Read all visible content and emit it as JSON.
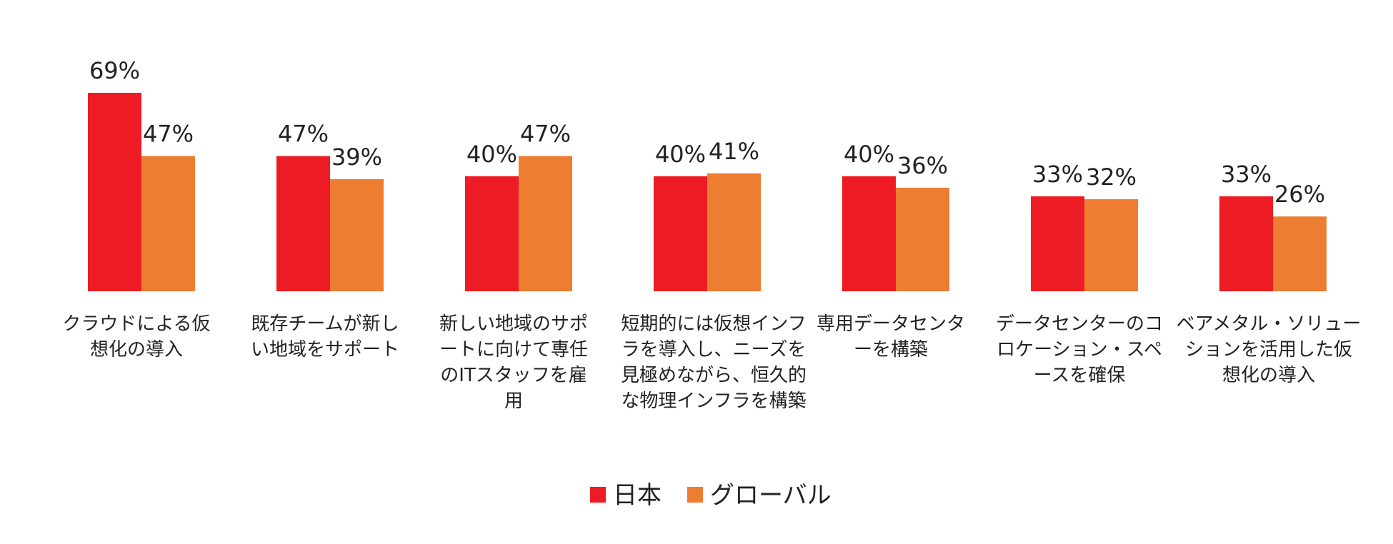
{
  "chart_data": {
    "type": "bar",
    "categories": [
      [
        "クラウドによる仮",
        "想化の導入"
      ],
      [
        "既存チームが新し",
        "い地域をサポート"
      ],
      [
        "新しい地域のサポ",
        "ートに向けて専任",
        "のITスタッフを雇",
        "用"
      ],
      [
        "短期的には仮想インフ",
        "ラを導入し、ニーズを",
        "見極めながら、恒久的",
        "な物理インフラを構築"
      ],
      [
        "専用データセンタ",
        "ーを構築"
      ],
      [
        "データセンターのコ",
        "ロケーション・スペ",
        "ースを確保"
      ],
      [
        "ベアメタル・ソリュー",
        "ションを活用した仮",
        "想化の導入"
      ]
    ],
    "series": [
      {
        "name": "日本",
        "color": "#ed1c24",
        "values": [
          69,
          47,
          40,
          40,
          40,
          33,
          33
        ],
        "labels": [
          "69%",
          "47%",
          "40%",
          "40%",
          "40%",
          "33%",
          "33%"
        ]
      },
      {
        "name": "グローバル",
        "color": "#ed7d31",
        "values": [
          47,
          39,
          47,
          41,
          36,
          32,
          26
        ],
        "labels": [
          "47%",
          "39%",
          "47%",
          "41%",
          "36%",
          "32%",
          "26%"
        ]
      }
    ],
    "ylim": [
      0,
      69
    ],
    "grid": false,
    "legend_position": "bottom-center"
  }
}
